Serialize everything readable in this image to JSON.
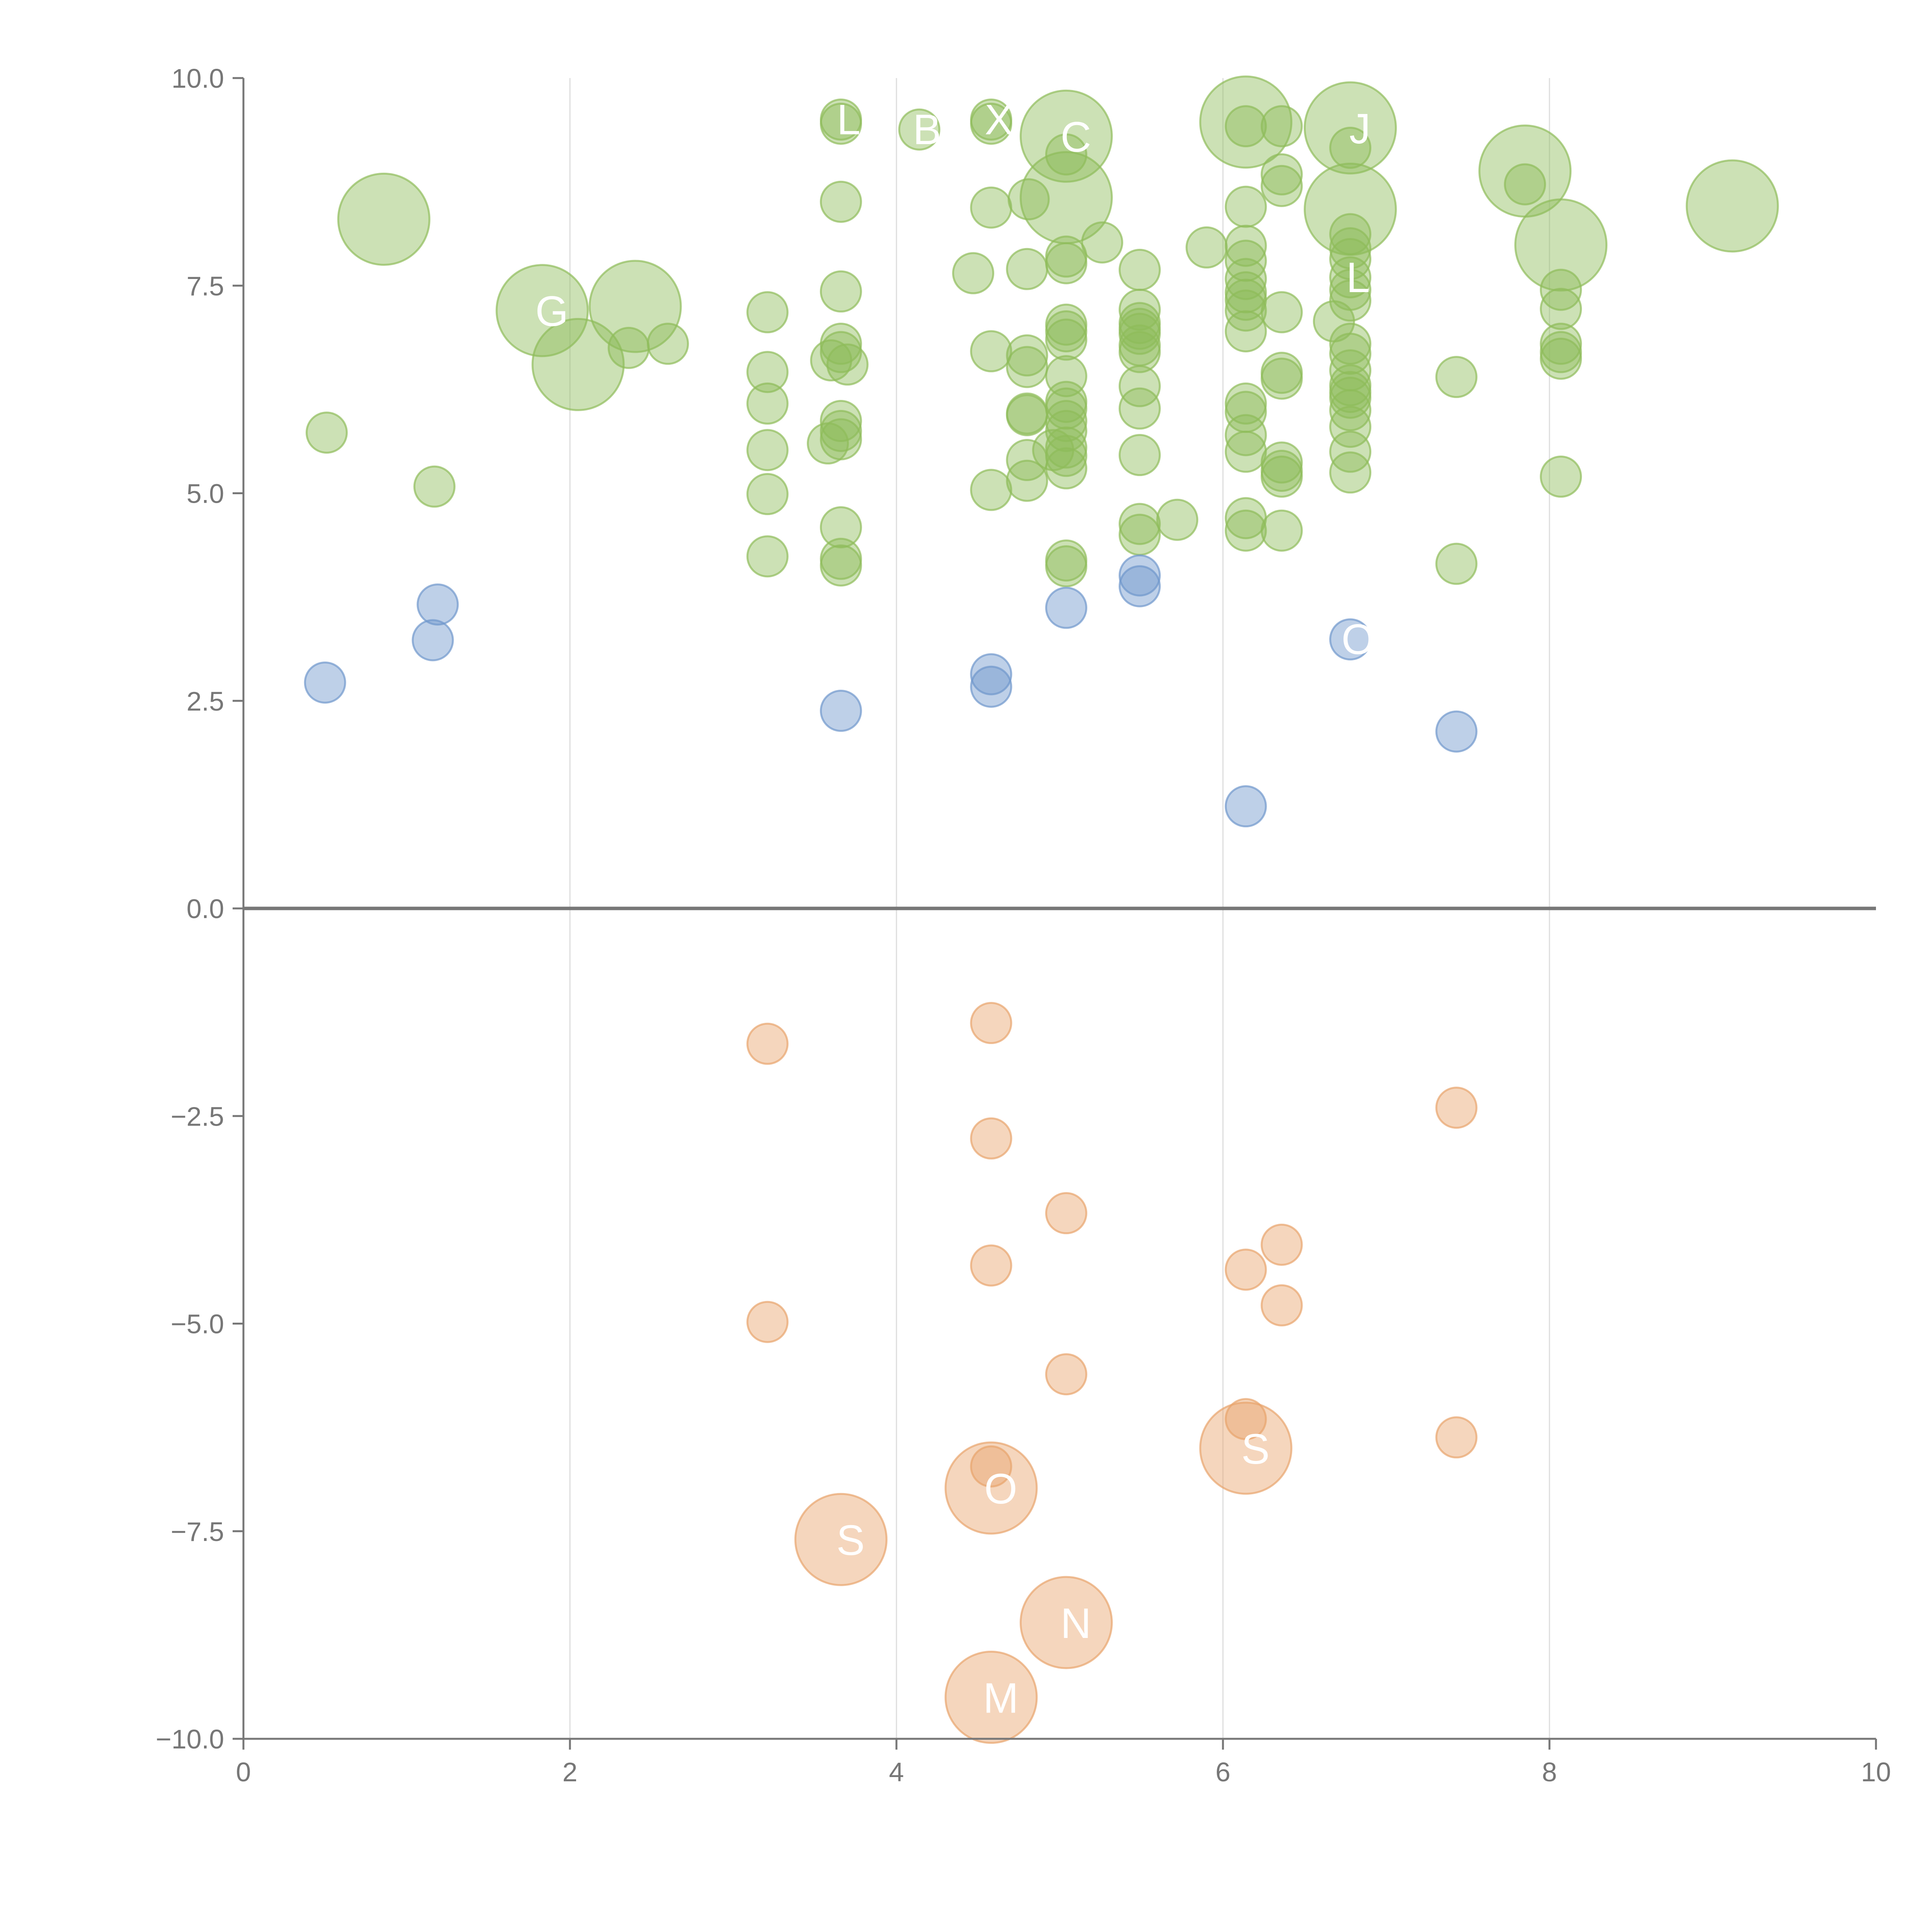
{
  "chart_data": {
    "type": "scatter",
    "title": "",
    "xlabel": "",
    "ylabel": "",
    "xlim": [
      0,
      10
    ],
    "ylim": [
      -10,
      10
    ],
    "x_ticks": [
      "0",
      "2",
      "4",
      "6",
      "8",
      "10"
    ],
    "y_ticks": [
      "10.0",
      "7.5",
      "5.0",
      "2.5",
      "0.0",
      "−2.5",
      "−5.0",
      "−7.5",
      "−10.0"
    ],
    "x_tick_values": [
      0,
      2,
      4,
      6,
      8,
      10
    ],
    "y_tick_values": [
      10,
      7.5,
      5,
      2.5,
      0,
      -2.5,
      -5,
      -7.5,
      -10
    ],
    "grid": "vertical",
    "colors": {
      "green": "#8fbc5a",
      "blue": "#6f97cc",
      "orange": "#e8a46c",
      "axis": "#777777",
      "grid": "#dddddd",
      "zero_line": "#777777"
    },
    "series": [
      {
        "color": "#8fbc5a",
        "points": [
          {
            "x": 0.86,
            "y": 8.3,
            "s": "l"
          },
          {
            "x": 1.83,
            "y": 7.2,
            "s": "l",
            "label": "G"
          },
          {
            "x": 2.05,
            "y": 6.55,
            "s": "l"
          },
          {
            "x": 2.4,
            "y": 7.25,
            "s": "l"
          },
          {
            "x": 2.36,
            "y": 6.75
          },
          {
            "x": 2.6,
            "y": 6.8
          },
          {
            "x": 0.51,
            "y": 5.73
          },
          {
            "x": 1.17,
            "y": 5.08
          },
          {
            "x": 3.21,
            "y": 7.18
          },
          {
            "x": 3.21,
            "y": 6.46
          },
          {
            "x": 3.21,
            "y": 6.08
          },
          {
            "x": 3.21,
            "y": 5.52
          },
          {
            "x": 3.21,
            "y": 4.99
          },
          {
            "x": 3.21,
            "y": 4.24
          },
          {
            "x": 3.66,
            "y": 9.5,
            "label": "L"
          },
          {
            "x": 3.66,
            "y": 9.45
          },
          {
            "x": 3.66,
            "y": 8.51
          },
          {
            "x": 3.66,
            "y": 7.43
          },
          {
            "x": 3.66,
            "y": 6.8
          },
          {
            "x": 3.66,
            "y": 6.7
          },
          {
            "x": 3.6,
            "y": 6.6
          },
          {
            "x": 3.7,
            "y": 6.55
          },
          {
            "x": 3.66,
            "y": 5.87
          },
          {
            "x": 3.66,
            "y": 5.75
          },
          {
            "x": 3.66,
            "y": 5.65
          },
          {
            "x": 3.58,
            "y": 5.6
          },
          {
            "x": 3.66,
            "y": 4.59
          },
          {
            "x": 3.66,
            "y": 4.21
          },
          {
            "x": 3.66,
            "y": 4.13
          },
          {
            "x": 4.14,
            "y": 9.38,
            "label": "B"
          },
          {
            "x": 4.58,
            "y": 9.5,
            "label": "X"
          },
          {
            "x": 4.58,
            "y": 9.45
          },
          {
            "x": 4.58,
            "y": 8.44
          },
          {
            "x": 4.81,
            "y": 8.54
          },
          {
            "x": 4.47,
            "y": 7.65
          },
          {
            "x": 4.8,
            "y": 7.7
          },
          {
            "x": 4.58,
            "y": 6.71
          },
          {
            "x": 4.8,
            "y": 6.66
          },
          {
            "x": 4.8,
            "y": 6.52
          },
          {
            "x": 4.8,
            "y": 5.96
          },
          {
            "x": 4.8,
            "y": 5.94
          },
          {
            "x": 4.8,
            "y": 5.4
          },
          {
            "x": 4.8,
            "y": 5.15
          },
          {
            "x": 4.58,
            "y": 5.04
          },
          {
            "x": 5.04,
            "y": 9.3,
            "s": "l",
            "label": "C"
          },
          {
            "x": 5.04,
            "y": 8.56,
            "s": "l"
          },
          {
            "x": 5.04,
            "y": 9.08
          },
          {
            "x": 5.04,
            "y": 7.85
          },
          {
            "x": 5.04,
            "y": 7.77
          },
          {
            "x": 5.26,
            "y": 8.02
          },
          {
            "x": 5.04,
            "y": 7.03
          },
          {
            "x": 5.04,
            "y": 6.95
          },
          {
            "x": 5.04,
            "y": 6.85
          },
          {
            "x": 5.04,
            "y": 6.41
          },
          {
            "x": 5.04,
            "y": 6.1
          },
          {
            "x": 5.04,
            "y": 6.02
          },
          {
            "x": 5.04,
            "y": 5.87
          },
          {
            "x": 5.04,
            "y": 5.75
          },
          {
            "x": 5.04,
            "y": 5.55
          },
          {
            "x": 5.04,
            "y": 5.45
          },
          {
            "x": 5.04,
            "y": 5.3
          },
          {
            "x": 4.96,
            "y": 5.52
          },
          {
            "x": 5.04,
            "y": 4.19
          },
          {
            "x": 5.04,
            "y": 4.12
          },
          {
            "x": 5.49,
            "y": 7.69
          },
          {
            "x": 5.49,
            "y": 7.21
          },
          {
            "x": 5.49,
            "y": 7.05
          },
          {
            "x": 5.49,
            "y": 6.98
          },
          {
            "x": 5.49,
            "y": 6.92
          },
          {
            "x": 5.49,
            "y": 6.78
          },
          {
            "x": 5.49,
            "y": 6.7
          },
          {
            "x": 5.49,
            "y": 6.29
          },
          {
            "x": 5.49,
            "y": 6.02
          },
          {
            "x": 5.49,
            "y": 5.46
          },
          {
            "x": 5.49,
            "y": 4.63
          },
          {
            "x": 5.49,
            "y": 4.5
          },
          {
            "x": 5.72,
            "y": 4.68
          },
          {
            "x": 5.9,
            "y": 7.96
          },
          {
            "x": 6.14,
            "y": 9.47,
            "s": "l"
          },
          {
            "x": 6.14,
            "y": 9.42
          },
          {
            "x": 6.36,
            "y": 9.42
          },
          {
            "x": 6.14,
            "y": 8.45
          },
          {
            "x": 6.36,
            "y": 8.84
          },
          {
            "x": 6.36,
            "y": 8.7
          },
          {
            "x": 6.14,
            "y": 7.98
          },
          {
            "x": 6.14,
            "y": 7.8
          },
          {
            "x": 6.14,
            "y": 7.58
          },
          {
            "x": 6.14,
            "y": 7.42
          },
          {
            "x": 6.14,
            "y": 7.33
          },
          {
            "x": 6.14,
            "y": 7.2
          },
          {
            "x": 6.14,
            "y": 6.95
          },
          {
            "x": 6.36,
            "y": 7.18
          },
          {
            "x": 6.36,
            "y": 6.45
          },
          {
            "x": 6.36,
            "y": 6.38
          },
          {
            "x": 6.14,
            "y": 6.08
          },
          {
            "x": 6.14,
            "y": 5.98
          },
          {
            "x": 6.14,
            "y": 5.7
          },
          {
            "x": 6.14,
            "y": 5.5
          },
          {
            "x": 6.36,
            "y": 5.37
          },
          {
            "x": 6.36,
            "y": 5.27
          },
          {
            "x": 6.36,
            "y": 5.2
          },
          {
            "x": 6.14,
            "y": 4.7
          },
          {
            "x": 6.14,
            "y": 4.55
          },
          {
            "x": 6.36,
            "y": 4.55
          },
          {
            "x": 6.78,
            "y": 9.4,
            "s": "l",
            "label": "J"
          },
          {
            "x": 6.78,
            "y": 8.42,
            "s": "l"
          },
          {
            "x": 6.78,
            "y": 9.16
          },
          {
            "x": 6.78,
            "y": 8.12
          },
          {
            "x": 6.78,
            "y": 7.95
          },
          {
            "x": 6.78,
            "y": 7.82
          },
          {
            "x": 6.78,
            "y": 7.6,
            "label": "L"
          },
          {
            "x": 6.78,
            "y": 7.45
          },
          {
            "x": 6.78,
            "y": 7.32
          },
          {
            "x": 6.68,
            "y": 7.07
          },
          {
            "x": 6.78,
            "y": 6.8
          },
          {
            "x": 6.78,
            "y": 6.68
          },
          {
            "x": 6.78,
            "y": 6.48
          },
          {
            "x": 6.78,
            "y": 6.3
          },
          {
            "x": 6.78,
            "y": 6.22
          },
          {
            "x": 6.78,
            "y": 6.15
          },
          {
            "x": 6.78,
            "y": 6.0
          },
          {
            "x": 6.78,
            "y": 5.8
          },
          {
            "x": 6.78,
            "y": 5.5
          },
          {
            "x": 6.78,
            "y": 5.25
          },
          {
            "x": 7.85,
            "y": 8.88,
            "s": "l"
          },
          {
            "x": 7.85,
            "y": 8.72
          },
          {
            "x": 7.43,
            "y": 6.4
          },
          {
            "x": 7.43,
            "y": 4.15
          },
          {
            "x": 8.07,
            "y": 7.99,
            "s": "l"
          },
          {
            "x": 8.07,
            "y": 7.45
          },
          {
            "x": 8.07,
            "y": 7.22
          },
          {
            "x": 8.07,
            "y": 6.8
          },
          {
            "x": 8.07,
            "y": 6.7
          },
          {
            "x": 8.07,
            "y": 6.62
          },
          {
            "x": 8.07,
            "y": 5.2
          },
          {
            "x": 9.12,
            "y": 8.46,
            "s": "l"
          }
        ]
      },
      {
        "color": "#6f97cc",
        "points": [
          {
            "x": 0.5,
            "y": 2.72
          },
          {
            "x": 1.19,
            "y": 3.66
          },
          {
            "x": 1.16,
            "y": 3.23
          },
          {
            "x": 3.66,
            "y": 2.38
          },
          {
            "x": 4.58,
            "y": 2.82
          },
          {
            "x": 4.58,
            "y": 2.67
          },
          {
            "x": 5.04,
            "y": 3.62
          },
          {
            "x": 5.49,
            "y": 4.01
          },
          {
            "x": 5.49,
            "y": 3.88
          },
          {
            "x": 6.78,
            "y": 3.24,
            "label": "O"
          },
          {
            "x": 7.43,
            "y": 2.13
          },
          {
            "x": 6.14,
            "y": 1.23
          }
        ]
      },
      {
        "color": "#e8a46c",
        "points": [
          {
            "x": 3.21,
            "y": -1.63
          },
          {
            "x": 4.58,
            "y": -1.38
          },
          {
            "x": 4.58,
            "y": -2.77
          },
          {
            "x": 5.04,
            "y": -3.67
          },
          {
            "x": 4.58,
            "y": -4.3
          },
          {
            "x": 3.21,
            "y": -4.98
          },
          {
            "x": 5.04,
            "y": -5.61
          },
          {
            "x": 6.14,
            "y": -4.35
          },
          {
            "x": 6.36,
            "y": -4.05
          },
          {
            "x": 6.36,
            "y": -4.78
          },
          {
            "x": 7.43,
            "y": -2.4
          },
          {
            "x": 7.43,
            "y": -6.37
          },
          {
            "x": 6.14,
            "y": -6.15
          },
          {
            "x": 6.14,
            "y": -6.5,
            "s": "l",
            "label": "S"
          },
          {
            "x": 4.58,
            "y": -6.72
          },
          {
            "x": 4.58,
            "y": -6.98,
            "s": "l",
            "label": "O"
          },
          {
            "x": 3.66,
            "y": -7.6,
            "s": "l",
            "label": "S"
          },
          {
            "x": 5.04,
            "y": -8.6,
            "s": "l",
            "label": "N"
          },
          {
            "x": 4.58,
            "y": -9.5,
            "s": "l",
            "label": "M"
          }
        ]
      }
    ]
  }
}
